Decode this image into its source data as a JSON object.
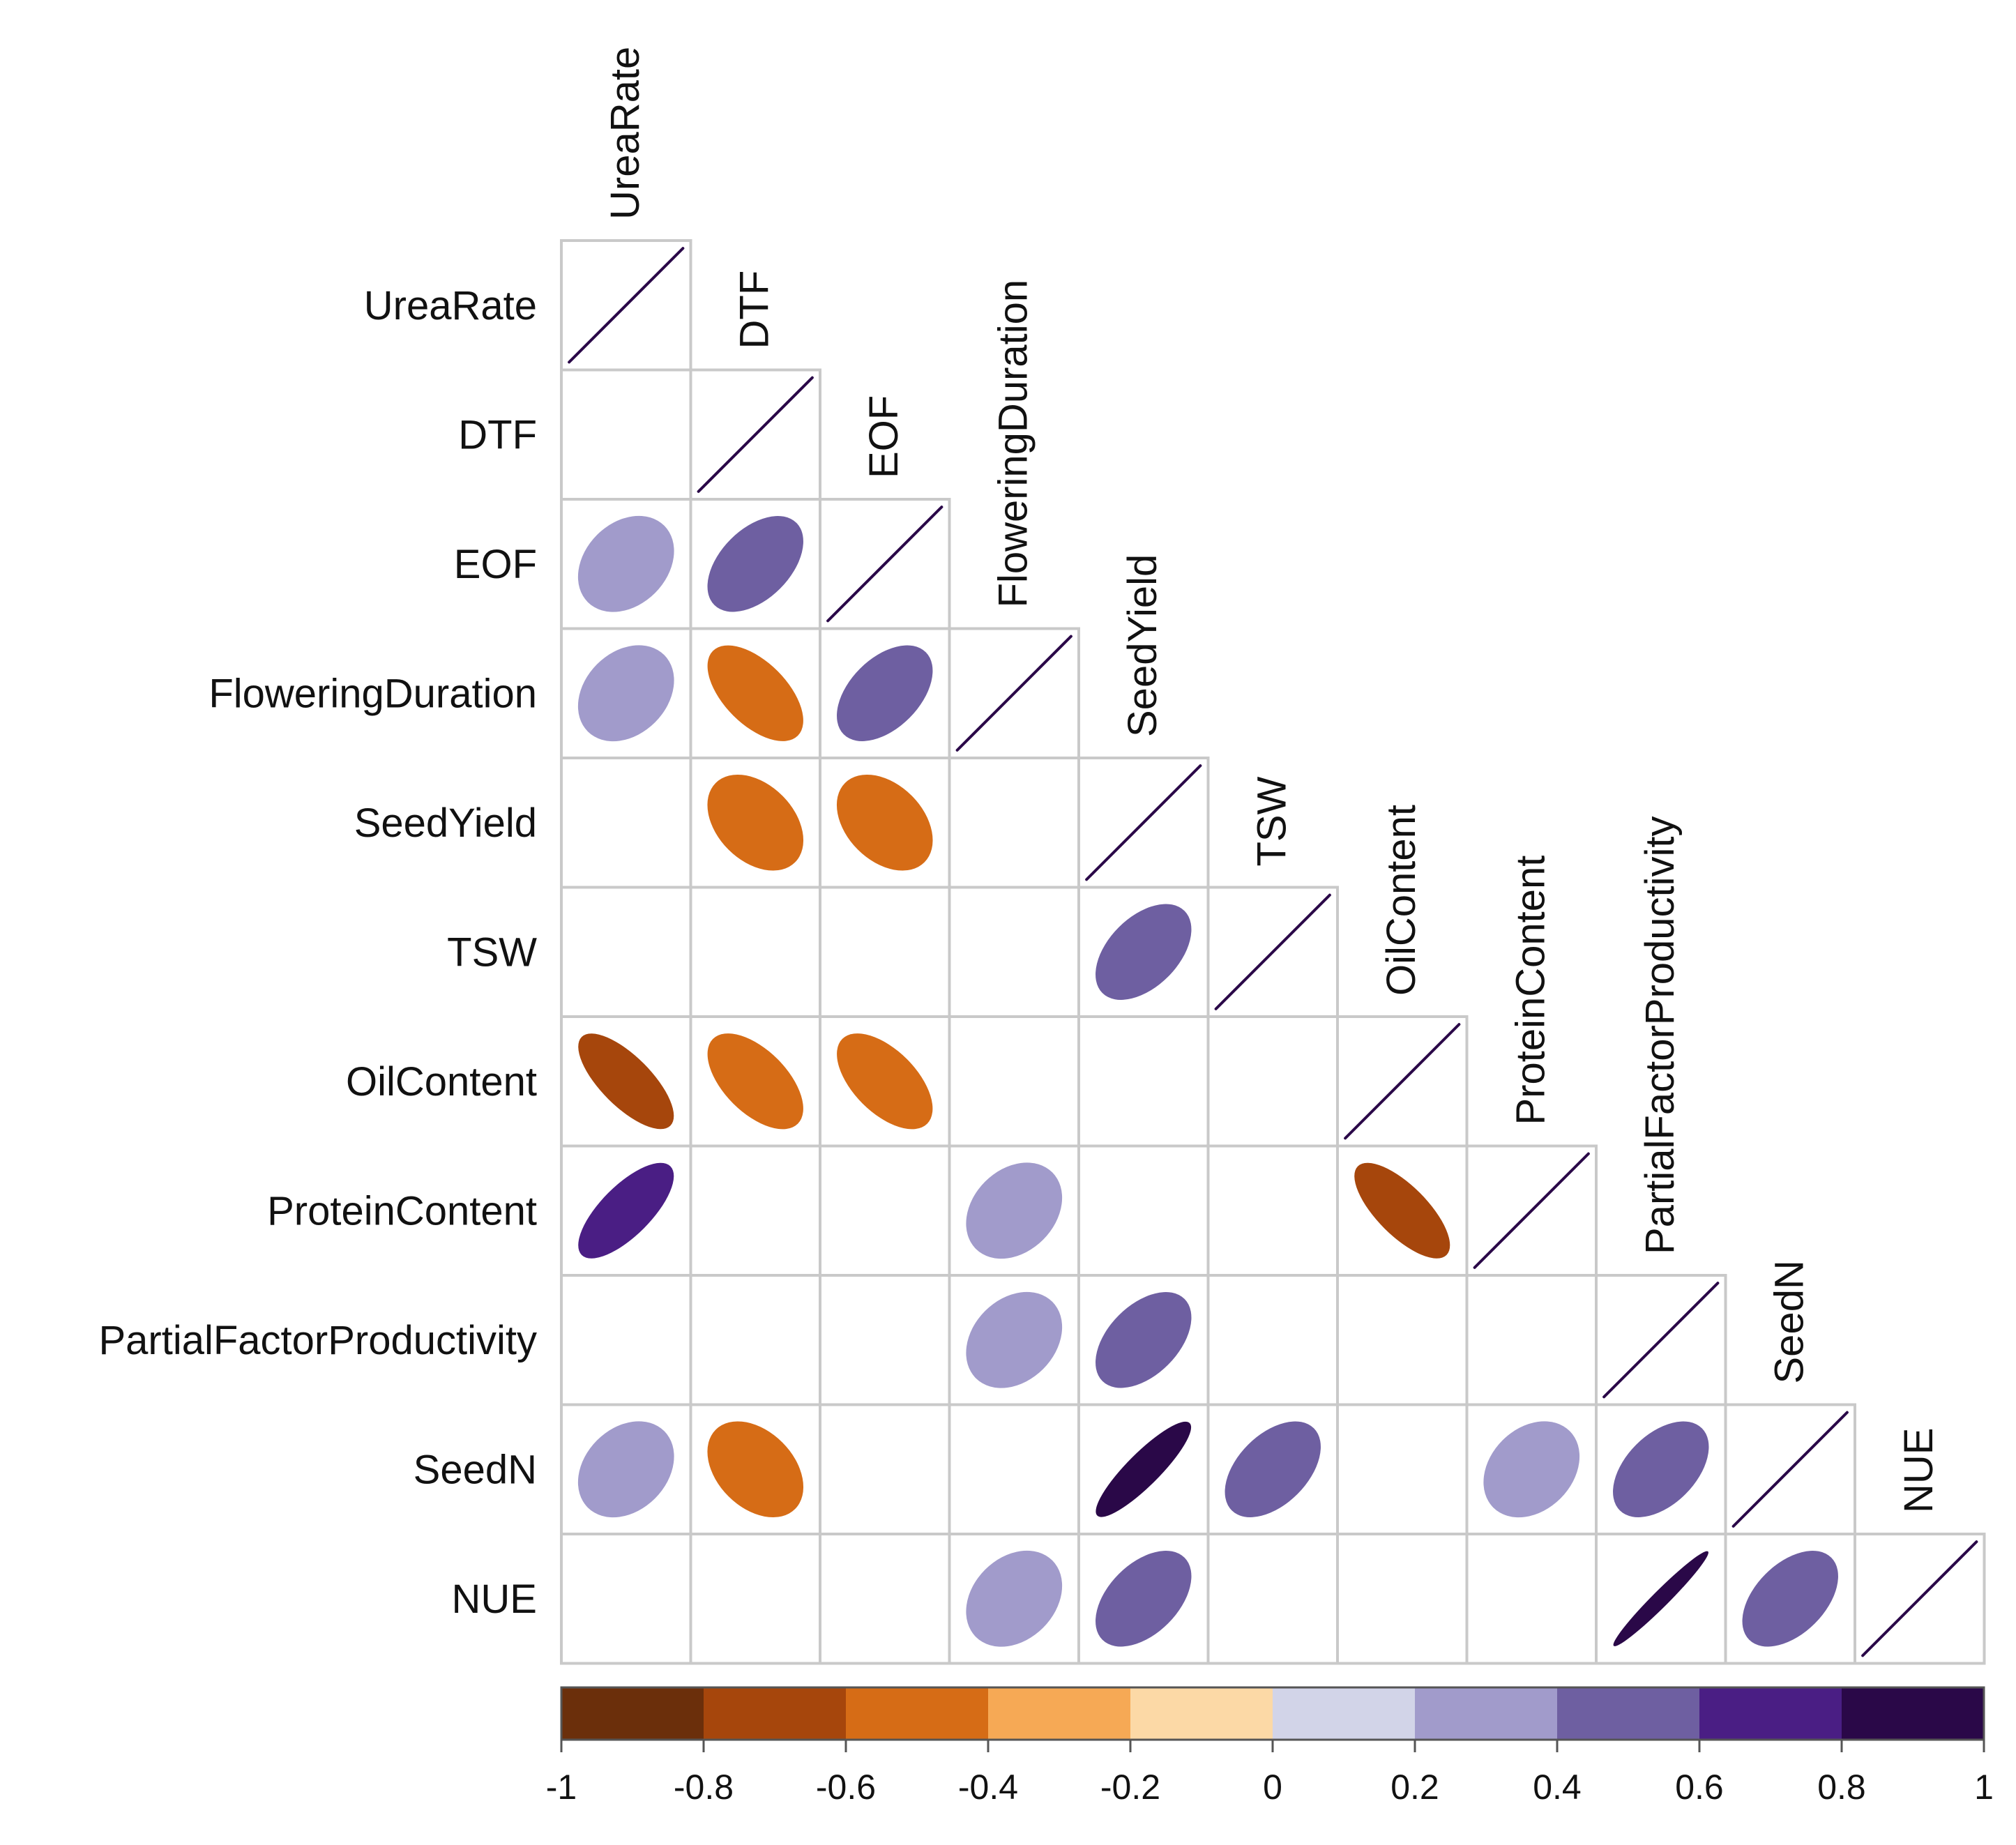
{
  "chart_data": {
    "type": "heatmap",
    "subtype": "correlation-ellipse-lower-triangle",
    "variables": [
      "UreaRate",
      "DTF",
      "EOF",
      "FloweringDuration",
      "SeedYield",
      "TSW",
      "OilContent",
      "ProteinContent",
      "PartialFactorProductivity",
      "SeedN",
      "NUE"
    ],
    "cells": [
      {
        "row": "UreaRate",
        "col": "UreaRate",
        "value": 1.0
      },
      {
        "row": "DTF",
        "col": "DTF",
        "value": 1.0
      },
      {
        "row": "EOF",
        "col": "UreaRate",
        "value": 0.3
      },
      {
        "row": "EOF",
        "col": "DTF",
        "value": 0.5
      },
      {
        "row": "EOF",
        "col": "EOF",
        "value": 1.0
      },
      {
        "row": "FloweringDuration",
        "col": "UreaRate",
        "value": 0.3
      },
      {
        "row": "FloweringDuration",
        "col": "DTF",
        "value": -0.6
      },
      {
        "row": "FloweringDuration",
        "col": "EOF",
        "value": 0.5
      },
      {
        "row": "FloweringDuration",
        "col": "FloweringDuration",
        "value": 1.0
      },
      {
        "row": "SeedYield",
        "col": "DTF",
        "value": -0.4
      },
      {
        "row": "SeedYield",
        "col": "EOF",
        "value": -0.4
      },
      {
        "row": "SeedYield",
        "col": "SeedYield",
        "value": 1.0
      },
      {
        "row": "TSW",
        "col": "SeedYield",
        "value": 0.5
      },
      {
        "row": "TSW",
        "col": "TSW",
        "value": 1.0
      },
      {
        "row": "OilContent",
        "col": "UreaRate",
        "value": -0.75
      },
      {
        "row": "OilContent",
        "col": "DTF",
        "value": -0.6
      },
      {
        "row": "OilContent",
        "col": "EOF",
        "value": -0.6
      },
      {
        "row": "OilContent",
        "col": "OilContent",
        "value": 1.0
      },
      {
        "row": "ProteinContent",
        "col": "UreaRate",
        "value": 0.75
      },
      {
        "row": "ProteinContent",
        "col": "FloweringDuration",
        "value": 0.3
      },
      {
        "row": "ProteinContent",
        "col": "OilContent",
        "value": -0.75
      },
      {
        "row": "ProteinContent",
        "col": "ProteinContent",
        "value": 1.0
      },
      {
        "row": "PartialFactorProductivity",
        "col": "FloweringDuration",
        "value": 0.3
      },
      {
        "row": "PartialFactorProductivity",
        "col": "SeedYield",
        "value": 0.5
      },
      {
        "row": "PartialFactorProductivity",
        "col": "PartialFactorProductivity",
        "value": 1.0
      },
      {
        "row": "SeedN",
        "col": "UreaRate",
        "value": 0.3
      },
      {
        "row": "SeedN",
        "col": "DTF",
        "value": -0.4
      },
      {
        "row": "SeedN",
        "col": "SeedYield",
        "value": 0.9
      },
      {
        "row": "SeedN",
        "col": "TSW",
        "value": 0.5
      },
      {
        "row": "SeedN",
        "col": "ProteinContent",
        "value": 0.3
      },
      {
        "row": "SeedN",
        "col": "PartialFactorProductivity",
        "value": 0.5
      },
      {
        "row": "SeedN",
        "col": "SeedN",
        "value": 1.0
      },
      {
        "row": "NUE",
        "col": "FloweringDuration",
        "value": 0.3
      },
      {
        "row": "NUE",
        "col": "SeedYield",
        "value": 0.5
      },
      {
        "row": "NUE",
        "col": "PartialFactorProductivity",
        "value": 0.98
      },
      {
        "row": "NUE",
        "col": "SeedN",
        "value": 0.5
      },
      {
        "row": "NUE",
        "col": "NUE",
        "value": 1.0
      }
    ],
    "colorbar": {
      "range": [
        -1,
        1
      ],
      "ticks": [
        "-1",
        "-0.8",
        "-0.6",
        "-0.4",
        "-0.2",
        "0",
        "0.2",
        "0.4",
        "0.6",
        "0.8",
        "1"
      ],
      "bins": [
        -0.9,
        -0.7,
        -0.5,
        -0.3,
        -0.1,
        0.1,
        0.3,
        0.5,
        0.7,
        0.9
      ],
      "colors": [
        "#6b2f0b",
        "#a6460c",
        "#d66c16",
        "#f6a955",
        "#fcd9a6",
        "#d2d4e8",
        "#a19bcb",
        "#6e5fa1",
        "#4a1e84",
        "#2a0848"
      ]
    }
  }
}
